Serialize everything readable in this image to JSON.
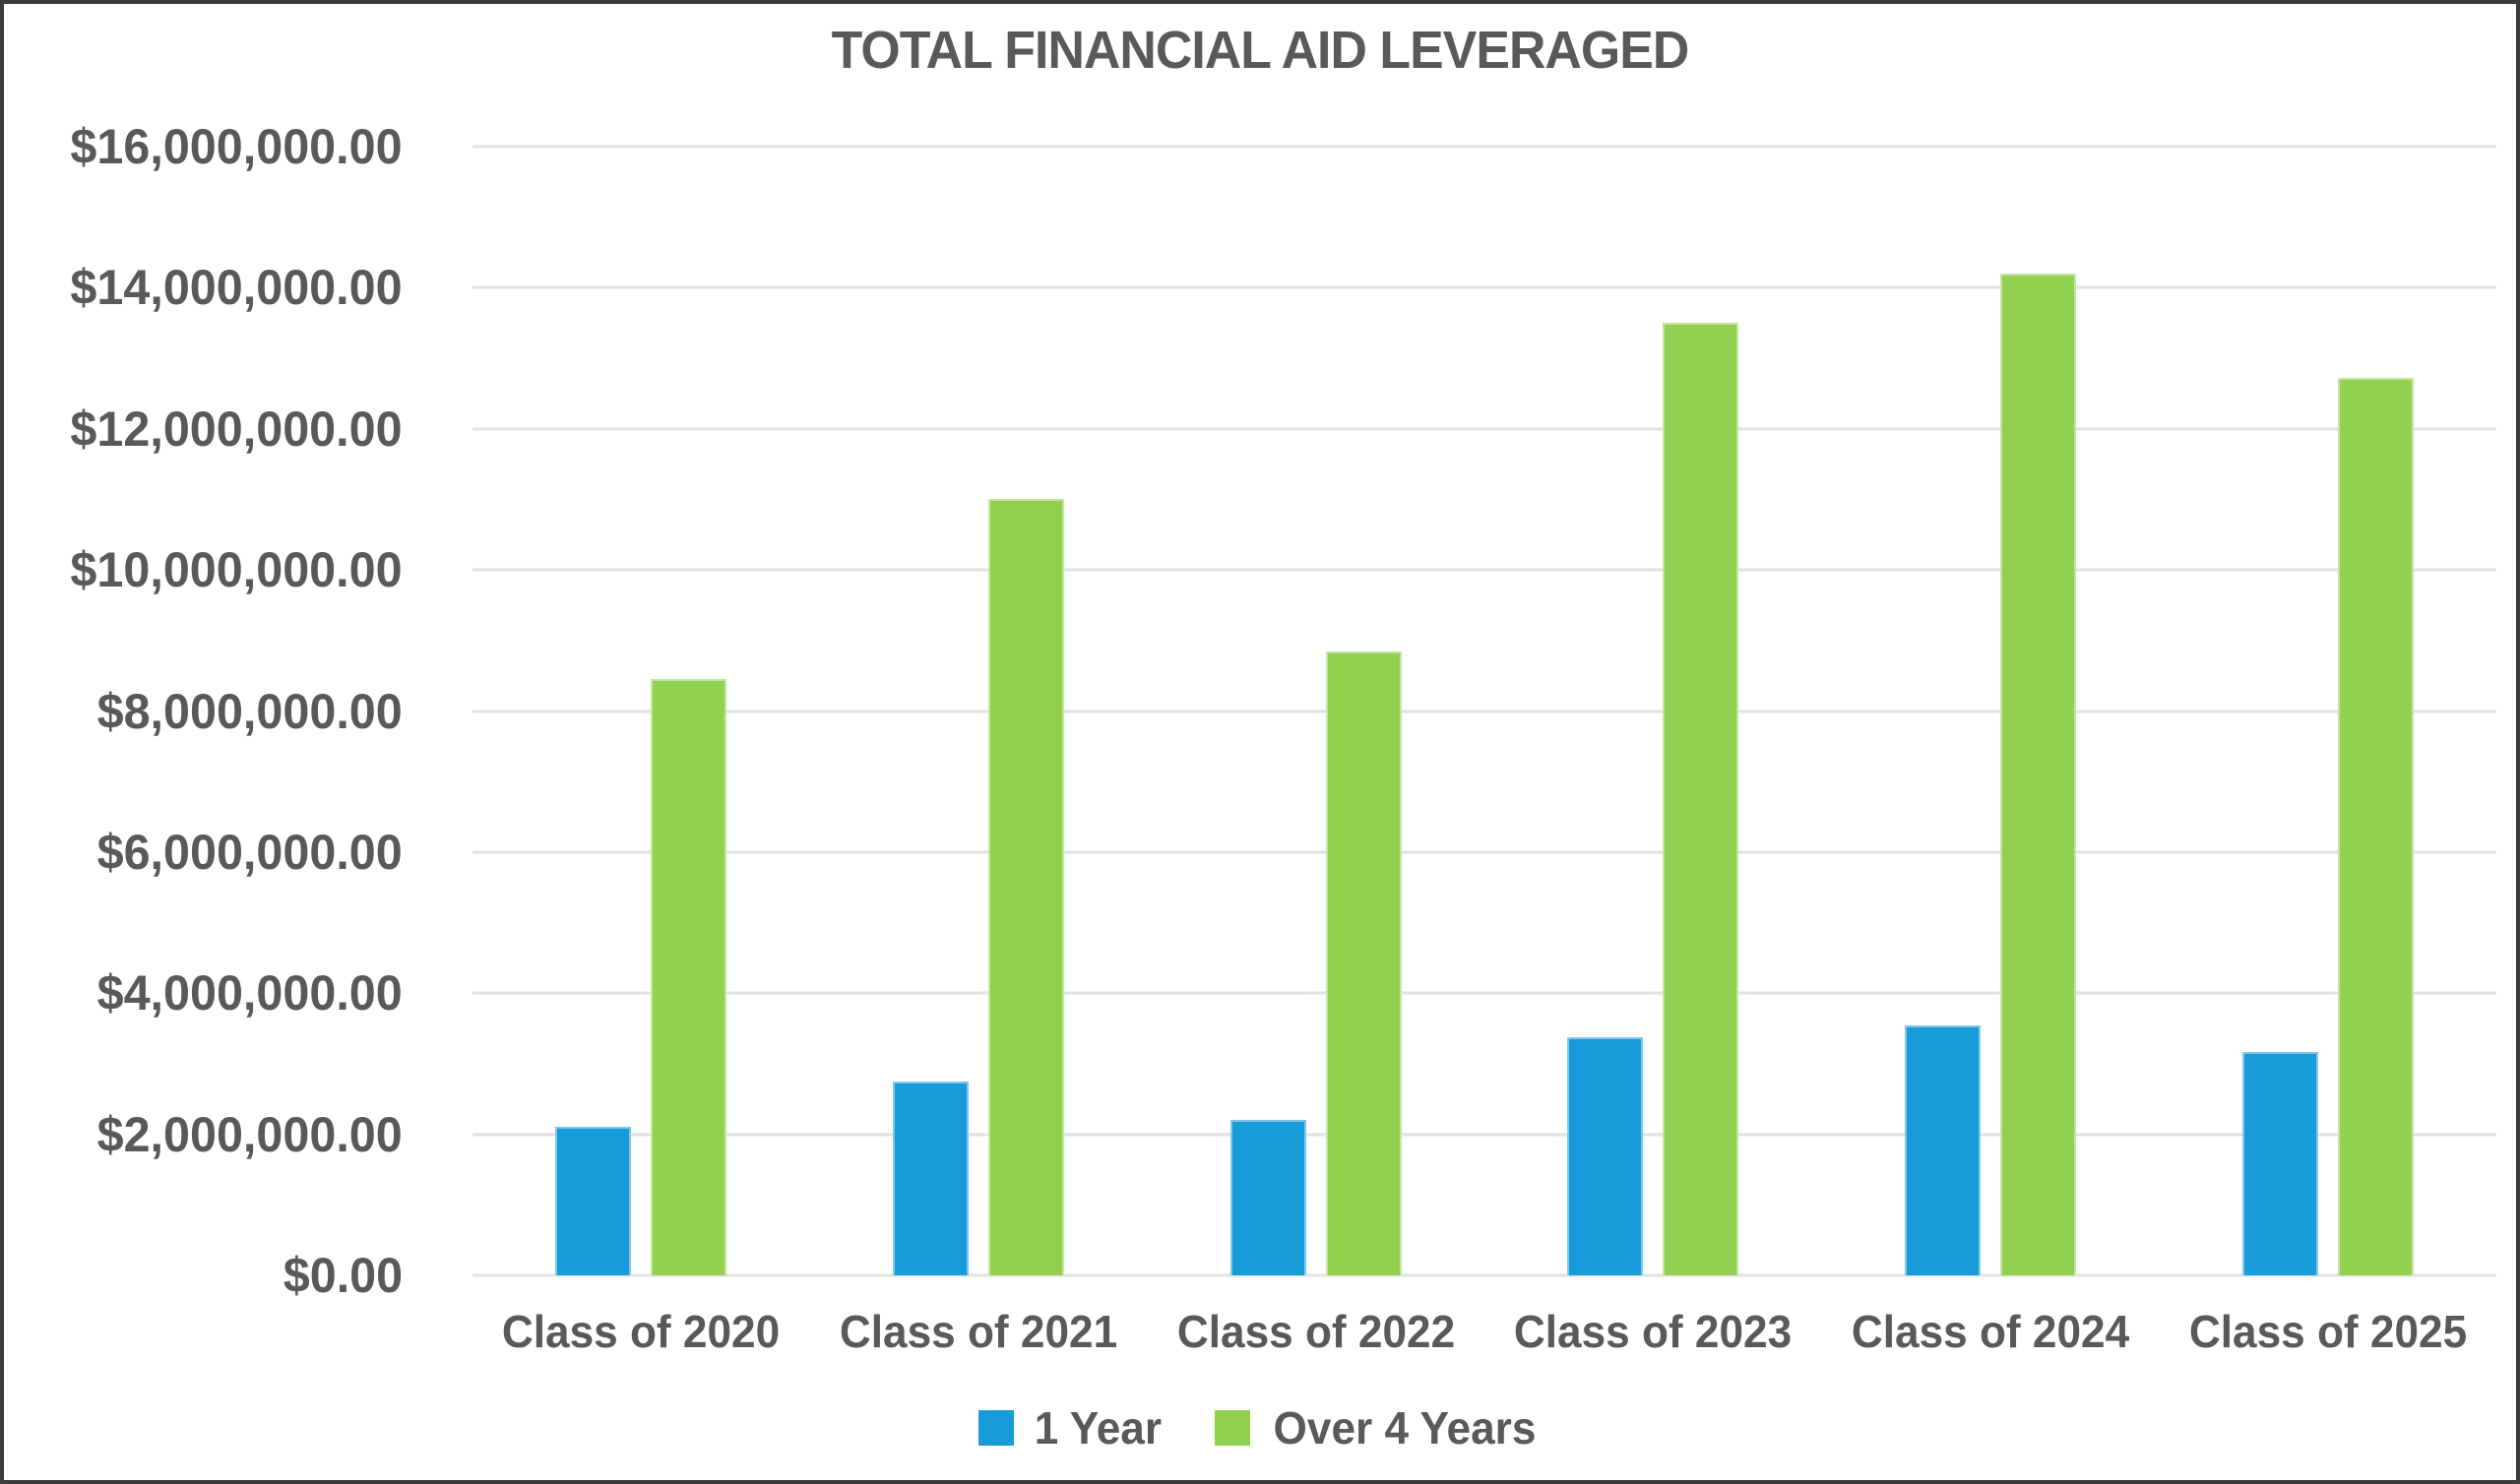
{
  "title": "TOTAL FINANCIAL AID LEVERAGED",
  "colors": {
    "series_1_year": "#189CD9",
    "series_over_4_years": "#92D050",
    "text": "#595959",
    "gridline": "#E2E2E2",
    "canvas_border": "#3C3C3C"
  },
  "chart_data": {
    "type": "bar",
    "title": "TOTAL FINANCIAL AID LEVERAGED",
    "categories": [
      "Class of 2020",
      "Class of 2021",
      "Class of 2022",
      "Class of 2023",
      "Class of 2024",
      "Class of 2025"
    ],
    "series": [
      {
        "name": "1 Year",
        "color": "#189CD9",
        "values": [
          2100000,
          2750000,
          2200000,
          3375000,
          3550000,
          3160000
        ]
      },
      {
        "name": "Over 4 Years",
        "color": "#92D050",
        "values": [
          8450000,
          11000000,
          8840000,
          13500000,
          14200000,
          12720000
        ]
      }
    ],
    "xlabel": "",
    "ylabel": "",
    "ylim": [
      0,
      16000000
    ],
    "ytick_step": 2000000,
    "ytick_labels": [
      "$0.00",
      "$2,000,000.00",
      "$4,000,000.00",
      "$6,000,000.00",
      "$8,000,000.00",
      "$10,000,000.00",
      "$12,000,000.00",
      "$14,000,000.00",
      "$16,000,000.00"
    ],
    "grid": true,
    "legend_position": "bottom"
  }
}
